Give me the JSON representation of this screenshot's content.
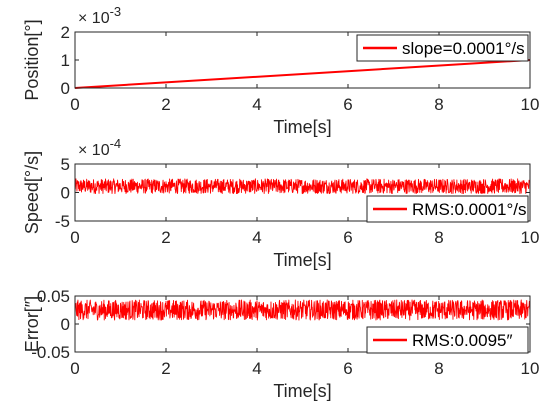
{
  "chart_data": [
    {
      "type": "line",
      "ylabel": "Position[°]",
      "xlabel": "Time[s]",
      "y_exponent": "× 10",
      "y_exponent_power": "-3",
      "xlim": [
        0,
        10
      ],
      "ylim": [
        0,
        2
      ],
      "xticks": [
        "0",
        "2",
        "4",
        "6",
        "8",
        "10"
      ],
      "yticks": [
        "0",
        "1",
        "2"
      ],
      "ytick_values": [
        0,
        1,
        2
      ],
      "legend": "slope=0.0001°/s",
      "legend_position": "top-right",
      "color": "#ff0000",
      "series": [
        {
          "name": "slope=0.0001°/s",
          "x": [
            0,
            10
          ],
          "y": [
            0,
            1
          ]
        }
      ]
    },
    {
      "type": "line",
      "ylabel": "Speed[°/s]",
      "xlabel": "Time[s]",
      "y_exponent": "× 10",
      "y_exponent_power": "-4",
      "xlim": [
        0,
        10
      ],
      "ylim": [
        -5,
        5
      ],
      "xticks": [
        "0",
        "2",
        "4",
        "6",
        "8",
        "10"
      ],
      "yticks": [
        "-5",
        "0",
        "5"
      ],
      "ytick_values": [
        -5,
        0,
        5
      ],
      "legend": "RMS:0.0001°/s",
      "legend_position": "bottom-right",
      "color": "#ff0000",
      "series": [
        {
          "name": "RMS:0.0001°/s",
          "mean": 1.1,
          "noise_amplitude": 1.3,
          "duration": 10
        }
      ]
    },
    {
      "type": "line",
      "ylabel": "Error[″]",
      "xlabel": "Time[s]",
      "xlim": [
        0,
        10
      ],
      "ylim": [
        -0.05,
        0.05
      ],
      "xticks": [
        "0",
        "2",
        "4",
        "6",
        "8",
        "10"
      ],
      "yticks": [
        "-0.05",
        "0",
        "0.05"
      ],
      "ytick_values": [
        -0.05,
        0,
        0.05
      ],
      "legend": "RMS:0.0095″",
      "legend_position": "bottom-right",
      "color": "#ff0000",
      "series": [
        {
          "name": "RMS:0.0095″",
          "mean": 0.025,
          "noise_amplitude": 0.018,
          "duration": 10
        }
      ]
    }
  ]
}
